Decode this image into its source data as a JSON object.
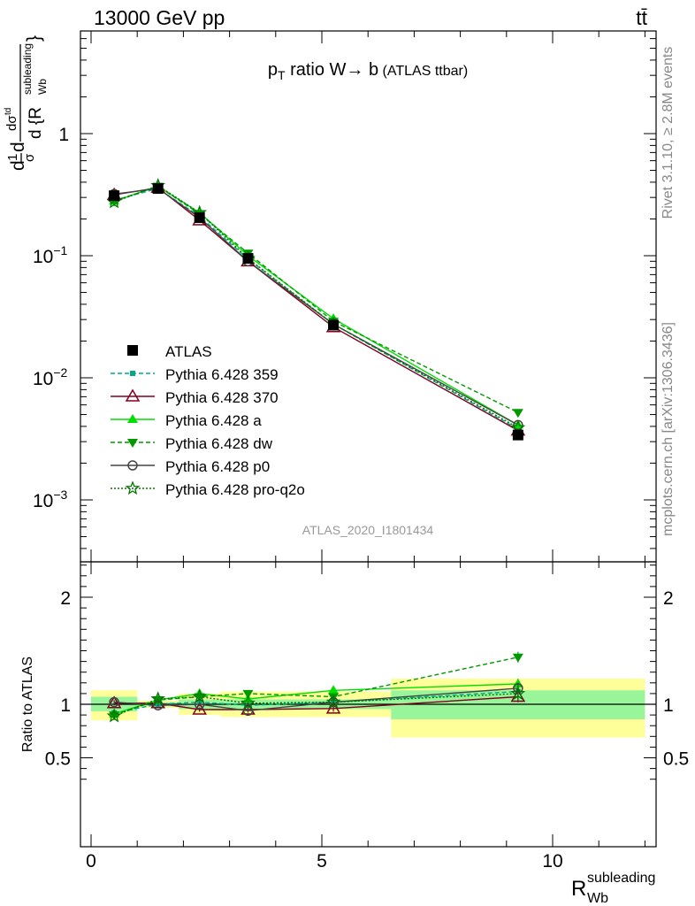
{
  "header": {
    "energy_label": "13000 GeV pp",
    "process_label": "tt̄"
  },
  "side_labels": {
    "rivet": "Rivet 3.1.10, ≥ 2.8M events",
    "mcplots": "mcplots.cern.ch [arXiv:1306.3436]"
  },
  "chart_data": [
    {
      "panel": "main",
      "type": "line",
      "title_parts": {
        "p": "p",
        "sub": "T",
        "rest": " ratio W",
        "arrow": "→",
        "b": " b",
        "paren": " (ATLAS ttbar)"
      },
      "ylabel": "d1dσ dσᵗᵈ / d{R_Wb^subleading}",
      "y_scale": "log",
      "ylim": [
        0.0003,
        5
      ],
      "xlim": [
        -0.3,
        12.3
      ],
      "yticks_major": [
        {
          "value": 1,
          "base": "1",
          "exp": ""
        },
        {
          "value": 0.1,
          "base": "10",
          "exp": "−1"
        },
        {
          "value": 0.01,
          "base": "10",
          "exp": "−2"
        },
        {
          "value": 0.001,
          "base": "10",
          "exp": "−3"
        }
      ],
      "watermark": "ATLAS_2020_I1801434",
      "x": [
        0.5,
        1.45,
        2.35,
        3.4,
        5.25,
        9.25
      ],
      "data": {
        "name": "ATLAS",
        "values": [
          0.31,
          0.355,
          0.205,
          0.095,
          0.027,
          0.0034
        ]
      },
      "series": [
        {
          "name": "Pythia 6.428 359",
          "color": "#00aa88",
          "dash": "5,3",
          "marker": "square-small",
          "values": [
            0.285,
            0.355,
            0.21,
            0.094,
            0.0275,
            0.0038
          ]
        },
        {
          "name": "Pythia 6.428 370",
          "color": "#800020",
          "dash": "",
          "marker": "triangle-open",
          "values": [
            0.315,
            0.36,
            0.195,
            0.09,
            0.026,
            0.0037
          ]
        },
        {
          "name": "Pythia 6.428 a",
          "color": "#00dd00",
          "dash": "",
          "marker": "triangle-filled",
          "values": [
            0.28,
            0.37,
            0.225,
            0.1,
            0.0305,
            0.0041
          ]
        },
        {
          "name": "Pythia 6.428 dw",
          "color": "#009900",
          "dash": "5,3",
          "marker": "triangle-down-filled",
          "values": [
            0.28,
            0.37,
            0.22,
            0.105,
            0.029,
            0.0052
          ]
        },
        {
          "name": "Pythia 6.428 p0",
          "color": "#444444",
          "dash": "",
          "marker": "circle-open",
          "values": [
            0.32,
            0.355,
            0.205,
            0.09,
            0.0275,
            0.0041
          ]
        },
        {
          "name": "Pythia 6.428 pro-q2o",
          "color": "#007700",
          "dash": "2,2",
          "marker": "star-open",
          "values": [
            0.275,
            0.375,
            0.225,
            0.095,
            0.0275,
            0.0039
          ]
        }
      ]
    },
    {
      "panel": "ratio",
      "type": "line",
      "ylabel": "Ratio to ATLAS",
      "xlabel_main": "R",
      "xlabel_sub": "Wb",
      "xlabel_sup": "subleading",
      "ylim": [
        0.25,
        2.35
      ],
      "xlim": [
        -0.3,
        12.3
      ],
      "yticks": [
        {
          "value": 0.5,
          "label": "0.5"
        },
        {
          "value": 1,
          "label": "1"
        },
        {
          "value": 2,
          "label": "2"
        }
      ],
      "xticks": [
        {
          "value": 0,
          "label": "0"
        },
        {
          "value": 5,
          "label": "5"
        },
        {
          "value": 10,
          "label": "10"
        }
      ],
      "bands": [
        {
          "x0": 0.0,
          "x1": 1.0,
          "stat_lo": 0.935,
          "stat_hi": 1.07,
          "tot_lo": 0.85,
          "tot_hi": 1.13
        },
        {
          "x0": 1.0,
          "x1": 1.9,
          "stat_lo": 0.98,
          "stat_hi": 1.02,
          "tot_lo": 0.965,
          "tot_hi": 1.035
        },
        {
          "x0": 1.9,
          "x1": 2.8,
          "stat_lo": 0.955,
          "stat_hi": 1.045,
          "tot_lo": 0.9,
          "tot_hi": 1.1
        },
        {
          "x0": 2.8,
          "x1": 4.0,
          "stat_lo": 0.955,
          "stat_hi": 1.045,
          "tot_lo": 0.88,
          "tot_hi": 1.12
        },
        {
          "x0": 4.0,
          "x1": 6.5,
          "stat_lo": 0.955,
          "stat_hi": 1.045,
          "tot_lo": 0.88,
          "tot_hi": 1.12
        },
        {
          "x0": 6.5,
          "x1": 12.0,
          "stat_lo": 0.86,
          "stat_hi": 1.13,
          "tot_lo": 0.69,
          "tot_hi": 1.24
        }
      ],
      "x": [
        0.5,
        1.45,
        2.35,
        3.4,
        5.25,
        9.25
      ],
      "series": [
        {
          "name": "Pythia 6.428 359",
          "values": [
            0.92,
            1.0,
            1.02,
            0.99,
            1.02,
            1.12
          ],
          "errors": [
            0.02,
            0.01,
            0.02,
            0.02,
            0.03,
            0.05
          ]
        },
        {
          "name": "Pythia 6.428 370",
          "values": [
            1.01,
            1.01,
            0.95,
            0.95,
            0.96,
            1.07
          ],
          "errors": [
            0.02,
            0.01,
            0.02,
            0.02,
            0.03,
            0.05
          ]
        },
        {
          "name": "Pythia 6.428 a",
          "values": [
            0.91,
            1.04,
            1.1,
            1.05,
            1.13,
            1.19
          ],
          "errors": [
            0.02,
            0.01,
            0.02,
            0.02,
            0.03,
            0.05
          ]
        },
        {
          "name": "Pythia 6.428 dw",
          "values": [
            0.9,
            1.04,
            1.07,
            1.1,
            1.07,
            1.44
          ],
          "errors": [
            0.02,
            0.01,
            0.02,
            0.02,
            0.03,
            0.05
          ]
        },
        {
          "name": "Pythia 6.428 p0",
          "values": [
            1.02,
            0.99,
            1.0,
            0.94,
            1.02,
            1.15
          ],
          "errors": [
            0.02,
            0.01,
            0.02,
            0.02,
            0.03,
            0.05
          ]
        },
        {
          "name": "Pythia 6.428 pro-q2o",
          "values": [
            0.89,
            1.05,
            1.07,
            1.01,
            1.02,
            1.1
          ],
          "errors": [
            0.02,
            0.01,
            0.02,
            0.02,
            0.03,
            0.05
          ]
        }
      ]
    }
  ]
}
